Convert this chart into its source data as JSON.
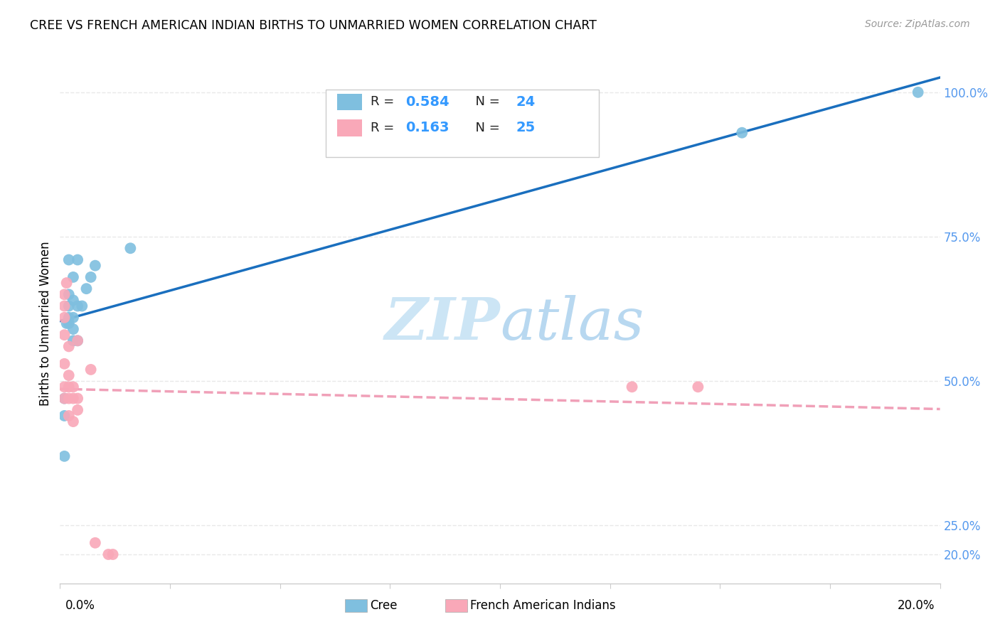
{
  "title": "CREE VS FRENCH AMERICAN INDIAN BIRTHS TO UNMARRIED WOMEN CORRELATION CHART",
  "source": "Source: ZipAtlas.com",
  "ylabel_label": "Births to Unmarried Women",
  "cree_color": "#7fbfdf",
  "french_color": "#f9a8b8",
  "cree_line_color": "#1a6fbe",
  "french_line_color": "#f0a0b8",
  "watermark_zip_color": "#cce5f5",
  "watermark_atlas_color": "#b8d8f0",
  "cree_x": [
    0.001,
    0.001,
    0.001,
    0.0015,
    0.002,
    0.002,
    0.002,
    0.002,
    0.002,
    0.003,
    0.003,
    0.003,
    0.003,
    0.003,
    0.004,
    0.004,
    0.004,
    0.005,
    0.006,
    0.007,
    0.008,
    0.016,
    0.155,
    0.195
  ],
  "cree_y": [
    0.37,
    0.44,
    0.47,
    0.6,
    0.6,
    0.61,
    0.63,
    0.65,
    0.71,
    0.57,
    0.59,
    0.61,
    0.64,
    0.68,
    0.57,
    0.63,
    0.71,
    0.63,
    0.66,
    0.68,
    0.7,
    0.73,
    0.93,
    1.0
  ],
  "french_x": [
    0.001,
    0.001,
    0.001,
    0.001,
    0.001,
    0.001,
    0.001,
    0.0015,
    0.002,
    0.002,
    0.002,
    0.002,
    0.002,
    0.003,
    0.003,
    0.003,
    0.004,
    0.004,
    0.004,
    0.007,
    0.008,
    0.011,
    0.012,
    0.13,
    0.145
  ],
  "french_y": [
    0.47,
    0.49,
    0.53,
    0.58,
    0.61,
    0.63,
    0.65,
    0.67,
    0.44,
    0.47,
    0.49,
    0.51,
    0.56,
    0.43,
    0.47,
    0.49,
    0.45,
    0.47,
    0.57,
    0.52,
    0.22,
    0.2,
    0.2,
    0.49,
    0.49
  ],
  "xlim": [
    0.0,
    0.2
  ],
  "ylim": [
    0.15,
    1.05
  ],
  "yticks": [
    0.2,
    0.25,
    0.5,
    0.75,
    1.0
  ],
  "ytick_labels": [
    "20.0%",
    "25.0%",
    "50.0%",
    "75.0%",
    "100.0%"
  ],
  "grid_color": "#e8e8e8",
  "axis_color": "#cccccc",
  "right_label_color": "#5599ee",
  "value_color": "#3399ff"
}
